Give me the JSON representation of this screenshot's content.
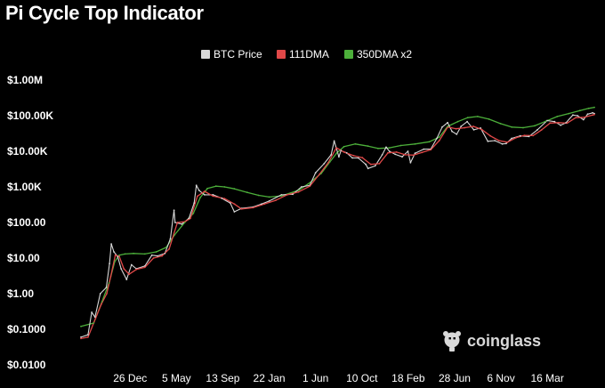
{
  "title": "Pi Cycle Top Indicator",
  "brand": {
    "name": "coinglass",
    "icon": "coinglass-logo-icon"
  },
  "colors": {
    "background": "#000000",
    "text": "#ffffff",
    "btc_price": "#d8d8d8",
    "dma111": "#e04848",
    "dma350x2": "#4caf3a",
    "brand": "#d9d9d9"
  },
  "chart_data": {
    "type": "line",
    "title": "Pi Cycle Top Indicator",
    "xlabel": "",
    "ylabel": "",
    "y_scale": "log",
    "ylim": [
      0.01,
      1000000
    ],
    "xlim": [
      "2010-07-18",
      "2025-08-01"
    ],
    "y_ticks": [
      {
        "value": 1000000,
        "label": "$1.00M"
      },
      {
        "value": 100000,
        "label": "$100.00K"
      },
      {
        "value": 10000,
        "label": "$10.00K"
      },
      {
        "value": 1000,
        "label": "$1.00K"
      },
      {
        "value": 100,
        "label": "$100.00"
      },
      {
        "value": 10,
        "label": "$10.00"
      },
      {
        "value": 1,
        "label": "$1.00"
      },
      {
        "value": 0.1,
        "label": "$0.1000"
      },
      {
        "value": 0.01,
        "label": "$0.0100"
      }
    ],
    "x_ticks": [
      {
        "date": "2011-12-26",
        "label": "26 Dec"
      },
      {
        "date": "2013-05-05",
        "label": "5 May"
      },
      {
        "date": "2014-09-13",
        "label": "13 Sep"
      },
      {
        "date": "2016-01-22",
        "label": "22 Jan"
      },
      {
        "date": "2017-06-01",
        "label": "1 Jun"
      },
      {
        "date": "2018-10-10",
        "label": "10 Oct"
      },
      {
        "date": "2020-02-18",
        "label": "18 Feb"
      },
      {
        "date": "2021-06-28",
        "label": "28 Jun"
      },
      {
        "date": "2022-11-06",
        "label": "6 Nov"
      },
      {
        "date": "2024-03-16",
        "label": "16 Mar"
      }
    ],
    "grid": false,
    "legend_position": "top-center",
    "series": [
      {
        "name": "BTC Price",
        "color": "#d8d8d8",
        "points": [
          [
            "2010-07-18",
            0.06
          ],
          [
            "2010-10-01",
            0.07
          ],
          [
            "2010-11-10",
            0.3
          ],
          [
            "2010-12-15",
            0.22
          ],
          [
            "2011-02-10",
            1.0
          ],
          [
            "2011-04-15",
            1.5
          ],
          [
            "2011-05-20",
            7.0
          ],
          [
            "2011-06-08",
            25.0
          ],
          [
            "2011-07-05",
            15.0
          ],
          [
            "2011-08-15",
            11.0
          ],
          [
            "2011-09-20",
            5.0
          ],
          [
            "2011-11-18",
            2.5
          ],
          [
            "2012-01-10",
            6.5
          ],
          [
            "2012-03-01",
            5.0
          ],
          [
            "2012-06-01",
            6.0
          ],
          [
            "2012-08-15",
            12.0
          ],
          [
            "2012-10-15",
            11.5
          ],
          [
            "2013-01-01",
            13.5
          ],
          [
            "2013-03-01",
            35.0
          ],
          [
            "2013-04-09",
            220.0
          ],
          [
            "2013-04-20",
            100.0
          ],
          [
            "2013-07-01",
            90.0
          ],
          [
            "2013-09-15",
            130.0
          ],
          [
            "2013-11-10",
            350.0
          ],
          [
            "2013-12-04",
            1100.0
          ],
          [
            "2014-01-01",
            800.0
          ],
          [
            "2014-03-01",
            600.0
          ],
          [
            "2014-06-01",
            600.0
          ],
          [
            "2014-09-01",
            480.0
          ],
          [
            "2014-12-01",
            350.0
          ],
          [
            "2015-01-14",
            200.0
          ],
          [
            "2015-04-01",
            250.0
          ],
          [
            "2015-08-01",
            270.0
          ],
          [
            "2015-11-01",
            330.0
          ],
          [
            "2016-01-22",
            400.0
          ],
          [
            "2016-06-01",
            600.0
          ],
          [
            "2016-10-01",
            620.0
          ],
          [
            "2017-01-01",
            1000.0
          ],
          [
            "2017-04-01",
            1100.0
          ],
          [
            "2017-06-01",
            2500.0
          ],
          [
            "2017-09-01",
            4500.0
          ],
          [
            "2017-11-15",
            8000.0
          ],
          [
            "2017-12-17",
            19500.0
          ],
          [
            "2018-02-06",
            7000.0
          ],
          [
            "2018-03-01",
            10500.0
          ],
          [
            "2018-05-01",
            9000.0
          ],
          [
            "2018-07-01",
            6500.0
          ],
          [
            "2018-09-01",
            6500.0
          ],
          [
            "2018-11-20",
            4300.0
          ],
          [
            "2018-12-15",
            3300.0
          ],
          [
            "2019-03-01",
            3900.0
          ],
          [
            "2019-05-15",
            8000.0
          ],
          [
            "2019-06-26",
            13000.0
          ],
          [
            "2019-08-01",
            10000.0
          ],
          [
            "2019-10-01",
            8200.0
          ],
          [
            "2019-12-15",
            7000.0
          ],
          [
            "2020-02-15",
            10000.0
          ],
          [
            "2020-03-13",
            4800.0
          ],
          [
            "2020-05-01",
            8800.0
          ],
          [
            "2020-08-01",
            11500.0
          ],
          [
            "2020-10-15",
            11500.0
          ],
          [
            "2020-12-20",
            23000.0
          ],
          [
            "2021-02-15",
            48000.0
          ],
          [
            "2021-04-14",
            64000.0
          ],
          [
            "2021-06-01",
            36000.0
          ],
          [
            "2021-07-20",
            30000.0
          ],
          [
            "2021-09-05",
            50000.0
          ],
          [
            "2021-11-10",
            68000.0
          ],
          [
            "2022-01-20",
            40000.0
          ],
          [
            "2022-04-01",
            45000.0
          ],
          [
            "2022-06-18",
            19000.0
          ],
          [
            "2022-09-01",
            20000.0
          ],
          [
            "2022-11-20",
            16000.0
          ],
          [
            "2023-01-01",
            16500.0
          ],
          [
            "2023-03-01",
            23000.0
          ],
          [
            "2023-06-01",
            27000.0
          ],
          [
            "2023-09-01",
            26000.0
          ],
          [
            "2023-12-01",
            40000.0
          ],
          [
            "2024-03-14",
            73000.0
          ],
          [
            "2024-06-01",
            68000.0
          ],
          [
            "2024-08-05",
            54000.0
          ],
          [
            "2024-10-01",
            63000.0
          ],
          [
            "2024-12-15",
            104000.0
          ],
          [
            "2025-02-01",
            100000.0
          ],
          [
            "2025-04-07",
            77000.0
          ],
          [
            "2025-05-22",
            110000.0
          ],
          [
            "2025-07-14",
            120000.0
          ],
          [
            "2025-08-01",
            115000.0
          ]
        ]
      },
      {
        "name": "111DMA",
        "color": "#e04848",
        "points": [
          [
            "2010-07-18",
            0.055
          ],
          [
            "2010-10-01",
            0.06
          ],
          [
            "2010-12-20",
            0.2
          ],
          [
            "2011-02-20",
            0.5
          ],
          [
            "2011-04-20",
            1.0
          ],
          [
            "2011-06-01",
            3.0
          ],
          [
            "2011-07-20",
            12.0
          ],
          [
            "2011-09-01",
            11.0
          ],
          [
            "2011-10-20",
            5.0
          ],
          [
            "2011-12-15",
            3.5
          ],
          [
            "2012-03-01",
            4.8
          ],
          [
            "2012-06-01",
            5.5
          ],
          [
            "2012-09-01",
            10.0
          ],
          [
            "2012-12-01",
            11.5
          ],
          [
            "2013-02-15",
            18.0
          ],
          [
            "2013-05-15",
            100.0
          ],
          [
            "2013-08-01",
            105.0
          ],
          [
            "2013-10-01",
            130.0
          ],
          [
            "2013-12-15",
            550.0
          ],
          [
            "2014-03-01",
            750.0
          ],
          [
            "2014-06-01",
            550.0
          ],
          [
            "2014-10-01",
            470.0
          ],
          [
            "2015-01-15",
            330.0
          ],
          [
            "2015-04-01",
            240.0
          ],
          [
            "2015-08-01",
            260.0
          ],
          [
            "2015-12-01",
            330.0
          ],
          [
            "2016-04-01",
            420.0
          ],
          [
            "2016-08-01",
            600.0
          ],
          [
            "2016-12-01",
            720.0
          ],
          [
            "2017-04-01",
            1050.0
          ],
          [
            "2017-07-15",
            2300.0
          ],
          [
            "2017-10-15",
            4800.0
          ],
          [
            "2018-01-10",
            12500.0
          ],
          [
            "2018-04-01",
            9500.0
          ],
          [
            "2018-07-15",
            7500.0
          ],
          [
            "2018-10-15",
            6600.0
          ],
          [
            "2019-01-15",
            4300.0
          ],
          [
            "2019-04-15",
            4500.0
          ],
          [
            "2019-07-15",
            9000.0
          ],
          [
            "2019-10-15",
            9500.0
          ],
          [
            "2020-01-15",
            8000.0
          ],
          [
            "2020-04-15",
            7800.0
          ],
          [
            "2020-07-15",
            9300.0
          ],
          [
            "2020-10-15",
            11000.0
          ],
          [
            "2021-01-15",
            20000.0
          ],
          [
            "2021-04-15",
            48000.0
          ],
          [
            "2021-07-15",
            43000.0
          ],
          [
            "2021-10-15",
            46000.0
          ],
          [
            "2022-01-15",
            50000.0
          ],
          [
            "2022-04-15",
            41000.0
          ],
          [
            "2022-07-15",
            27000.0
          ],
          [
            "2022-10-15",
            20000.0
          ],
          [
            "2023-01-15",
            18000.0
          ],
          [
            "2023-04-15",
            24000.0
          ],
          [
            "2023-07-15",
            28000.0
          ],
          [
            "2023-10-15",
            27500.0
          ],
          [
            "2024-01-15",
            40000.0
          ],
          [
            "2024-04-15",
            62000.0
          ],
          [
            "2024-07-15",
            64000.0
          ],
          [
            "2024-10-15",
            62000.0
          ],
          [
            "2025-01-15",
            88000.0
          ],
          [
            "2025-04-15",
            90000.0
          ],
          [
            "2025-07-15",
            104000.0
          ],
          [
            "2025-08-01",
            108000.0
          ]
        ]
      },
      {
        "name": "350DMA x2",
        "color": "#4caf3a",
        "points": [
          [
            "2010-07-18",
            0.12
          ],
          [
            "2010-12-01",
            0.15
          ],
          [
            "2011-03-01",
            0.6
          ],
          [
            "2011-05-15",
            2.0
          ],
          [
            "2011-07-15",
            8.0
          ],
          [
            "2011-09-01",
            12.0
          ],
          [
            "2011-11-01",
            13.0
          ],
          [
            "2012-02-01",
            13.5
          ],
          [
            "2012-06-01",
            13.0
          ],
          [
            "2012-10-01",
            15.0
          ],
          [
            "2013-01-15",
            20.0
          ],
          [
            "2013-04-15",
            45.0
          ],
          [
            "2013-08-01",
            100.0
          ],
          [
            "2013-11-01",
            180.0
          ],
          [
            "2014-01-15",
            500.0
          ],
          [
            "2014-04-01",
            900.0
          ],
          [
            "2014-07-01",
            1050.0
          ],
          [
            "2014-10-01",
            1000.0
          ],
          [
            "2015-01-15",
            880.0
          ],
          [
            "2015-06-01",
            700.0
          ],
          [
            "2015-10-01",
            580.0
          ],
          [
            "2016-01-22",
            520.0
          ],
          [
            "2016-06-01",
            560.0
          ],
          [
            "2016-12-01",
            800.0
          ],
          [
            "2017-04-01",
            1300.0
          ],
          [
            "2017-08-01",
            2400.0
          ],
          [
            "2017-11-01",
            5000.0
          ],
          [
            "2018-01-15",
            9000.0
          ],
          [
            "2018-04-01",
            13500.0
          ],
          [
            "2018-08-01",
            16000.0
          ],
          [
            "2018-12-15",
            14000.0
          ],
          [
            "2019-04-01",
            12000.0
          ],
          [
            "2019-08-01",
            12500.0
          ],
          [
            "2019-12-01",
            14500.0
          ],
          [
            "2020-05-01",
            16000.0
          ],
          [
            "2020-10-01",
            18500.0
          ],
          [
            "2021-01-15",
            25000.0
          ],
          [
            "2021-04-15",
            50000.0
          ],
          [
            "2021-08-01",
            68000.0
          ],
          [
            "2021-11-15",
            88000.0
          ],
          [
            "2022-03-01",
            95000.0
          ],
          [
            "2022-07-01",
            80000.0
          ],
          [
            "2022-11-01",
            60000.0
          ],
          [
            "2023-03-01",
            48000.0
          ],
          [
            "2023-07-01",
            46000.0
          ],
          [
            "2023-11-01",
            52000.0
          ],
          [
            "2024-03-01",
            70000.0
          ],
          [
            "2024-07-01",
            95000.0
          ],
          [
            "2024-11-01",
            115000.0
          ],
          [
            "2025-03-01",
            140000.0
          ],
          [
            "2025-06-01",
            160000.0
          ],
          [
            "2025-08-01",
            172000.0
          ]
        ]
      }
    ]
  }
}
